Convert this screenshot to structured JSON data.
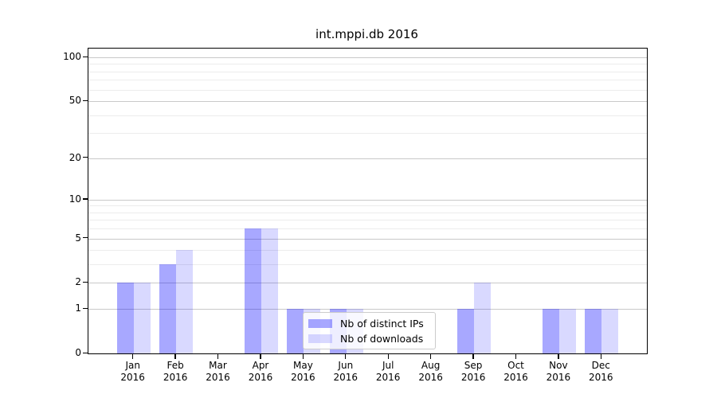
{
  "chart_data": {
    "type": "bar",
    "title": "int.mppi.db 2016",
    "categories": [
      "Jan 2016",
      "Feb 2016",
      "Mar 2016",
      "Apr 2016",
      "May 2016",
      "Jun 2016",
      "Jul 2016",
      "Aug 2016",
      "Sep 2016",
      "Oct 2016",
      "Nov 2016",
      "Dec 2016"
    ],
    "x_months": [
      "Jan",
      "Feb",
      "Mar",
      "Apr",
      "May",
      "Jun",
      "Jul",
      "Aug",
      "Sep",
      "Oct",
      "Nov",
      "Dec"
    ],
    "x_year": "2016",
    "series": [
      {
        "key": "distinct-ips",
        "name": "Nb of distinct IPs",
        "color": "#0000ff",
        "alpha": 0.34,
        "values": [
          2,
          3,
          0,
          6,
          1,
          1,
          0,
          0,
          1,
          0,
          1,
          1
        ]
      },
      {
        "key": "downloads",
        "name": "Nb of downloads",
        "color": "#0000ff",
        "alpha": 0.15,
        "values": [
          2,
          4,
          0,
          6,
          1,
          1,
          0,
          0,
          2,
          0,
          1,
          1
        ]
      }
    ],
    "yscale": "log1p",
    "ylim": [
      0,
      114.7
    ],
    "major_yticks": [
      0,
      1,
      2,
      5,
      10,
      20,
      50,
      100
    ],
    "minor_yticks": [
      3,
      4,
      6,
      7,
      8,
      9,
      30,
      40,
      60,
      70,
      80,
      90
    ],
    "grid": "horizontal-only",
    "legend": {
      "position": "lower center",
      "framealpha": 0.8
    },
    "palette": {
      "major_grid": "#c9c9c9",
      "minor_grid": "#ececec",
      "spine": "#000000",
      "text": "#000000",
      "background": "#ffffff"
    }
  }
}
